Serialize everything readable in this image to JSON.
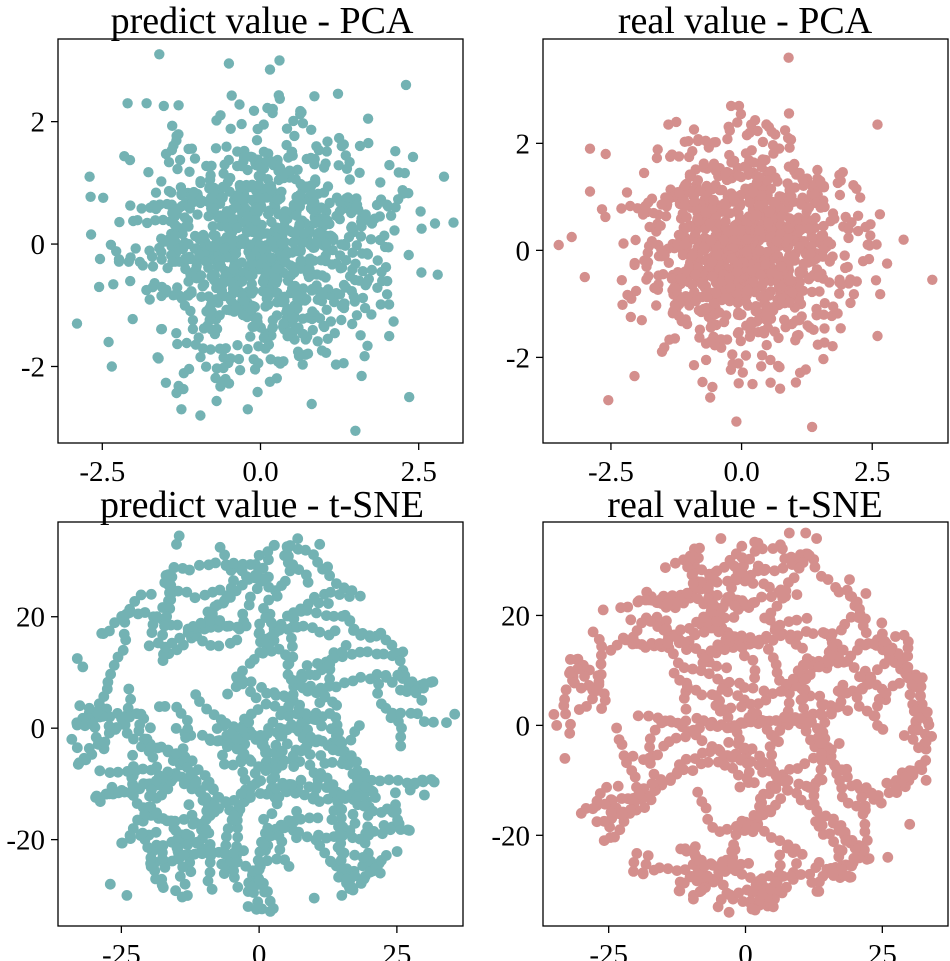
{
  "colors": {
    "predict": "#73b2b3",
    "real": "#d48f8d",
    "frame": "#000000"
  },
  "chart_data": [
    {
      "id": "pca-predict",
      "type": "scatter",
      "title": "predict value - PCA",
      "xlabel": "",
      "ylabel": "",
      "xlim": [
        -3.2,
        3.2
      ],
      "ylim": [
        -3.25,
        3.35
      ],
      "xticks": [
        -2.5,
        0,
        2.5
      ],
      "xtick_labels": [
        "-2.5",
        "0.0",
        "2.5"
      ],
      "yticks": [
        -2,
        0,
        2
      ],
      "ytick_labels": [
        "-2",
        "0",
        "2"
      ],
      "color_key": "predict",
      "n_points": 1000,
      "distribution": "gaussian blob centered at origin, sd ~1",
      "seed": 11,
      "points": [
        [
          -1.6,
          3.1
        ],
        [
          0.3,
          3.0
        ],
        [
          -0.5,
          2.95
        ],
        [
          0.15,
          2.85
        ],
        [
          -2.1,
          2.3
        ],
        [
          -1.8,
          2.3
        ],
        [
          2.3,
          2.6
        ],
        [
          -2.9,
          -1.3
        ],
        [
          -2.7,
          1.1
        ],
        [
          2.9,
          1.1
        ],
        [
          3.05,
          0.35
        ],
        [
          2.8,
          -0.5
        ],
        [
          2.35,
          -2.5
        ],
        [
          1.5,
          -3.05
        ],
        [
          -0.2,
          -2.7
        ],
        [
          -1.25,
          -2.7
        ],
        [
          -0.95,
          -2.8
        ],
        [
          -2.35,
          -2.0
        ],
        [
          -2.4,
          -1.6
        ],
        [
          -2.55,
          -0.7
        ]
      ]
    },
    {
      "id": "pca-real",
      "type": "scatter",
      "title": "real value - PCA",
      "xlabel": "",
      "ylabel": "",
      "xlim": [
        -3.8,
        3.95
      ],
      "ylim": [
        -3.6,
        3.95
      ],
      "xticks": [
        -2.5,
        0,
        2.5
      ],
      "xtick_labels": [
        "-2.5",
        "0.0",
        "2.5"
      ],
      "yticks": [
        -2,
        0,
        2
      ],
      "ytick_labels": [
        "-2",
        "0",
        "2"
      ],
      "color_key": "real",
      "n_points": 1000,
      "distribution": "gaussian blob centered at origin, sd ~1",
      "seed": 23,
      "points": [
        [
          0.9,
          3.6
        ],
        [
          -0.2,
          2.7
        ],
        [
          -0.05,
          2.7
        ],
        [
          -1.4,
          2.35
        ],
        [
          -1.25,
          2.4
        ],
        [
          -2.9,
          1.9
        ],
        [
          -2.6,
          1.8
        ],
        [
          -2.9,
          1.1
        ],
        [
          -3.5,
          0.1
        ],
        [
          -3.25,
          0.25
        ],
        [
          3.1,
          0.2
        ],
        [
          3.65,
          -0.55
        ],
        [
          2.6,
          2.35
        ],
        [
          -2.55,
          -2.8
        ],
        [
          -2.05,
          -2.35
        ],
        [
          -0.1,
          -3.2
        ],
        [
          1.35,
          -3.3
        ],
        [
          -0.6,
          -2.75
        ],
        [
          2.6,
          -1.6
        ],
        [
          -3.0,
          -0.5
        ]
      ]
    },
    {
      "id": "tsne-predict",
      "type": "scatter",
      "title": "predict value - t-SNE",
      "xlabel": "",
      "ylabel": "",
      "xlim": [
        -36.5,
        37
      ],
      "ylim": [
        -35.5,
        37
      ],
      "xticks": [
        -25,
        0,
        25
      ],
      "xtick_labels": [
        "-25",
        "0",
        "25"
      ],
      "yticks": [
        -20,
        0,
        20
      ],
      "ytick_labels": [
        "-20",
        "0",
        "20"
      ],
      "color_key": "predict",
      "n_points": 1000,
      "distribution": "uniform disk of radius ~34 with snaking clusters",
      "seed": 37,
      "points": [
        [
          -14.5,
          34.5
        ],
        [
          -15,
          33
        ],
        [
          7,
          34
        ],
        [
          11,
          33
        ],
        [
          0,
          31
        ],
        [
          -33,
          12.5
        ],
        [
          -34,
          -2
        ],
        [
          -33,
          -3.5
        ],
        [
          35.5,
          2.5
        ],
        [
          34,
          1
        ],
        [
          30,
          -12
        ],
        [
          -27,
          -28
        ],
        [
          -24,
          -30
        ],
        [
          -2,
          -32
        ],
        [
          -0.5,
          -32.5
        ],
        [
          10,
          -30.5
        ],
        [
          15,
          -30
        ],
        [
          -32,
          11
        ],
        [
          30,
          8
        ],
        [
          22,
          -26
        ]
      ]
    },
    {
      "id": "tsne-real",
      "type": "scatter",
      "title": "real value - t-SNE",
      "xlabel": "",
      "ylabel": "",
      "xlim": [
        -37,
        37
      ],
      "ylim": [
        -36.5,
        37
      ],
      "xticks": [
        -25,
        0,
        25
      ],
      "xtick_labels": [
        "-25",
        "0",
        "25"
      ],
      "yticks": [
        -20,
        0,
        20
      ],
      "ytick_labels": [
        "-20",
        "0",
        "20"
      ],
      "color_key": "real",
      "n_points": 1000,
      "distribution": "uniform disk of radius ~34 with snaking clusters",
      "seed": 53,
      "points": [
        [
          8,
          35
        ],
        [
          11,
          35
        ],
        [
          13,
          34
        ],
        [
          -4.5,
          34
        ],
        [
          -35,
          2
        ],
        [
          -34.5,
          0
        ],
        [
          -33,
          -6
        ],
        [
          34,
          -2
        ],
        [
          33,
          -3
        ],
        [
          30,
          -18
        ],
        [
          -30,
          -16
        ],
        [
          -5,
          -33
        ],
        [
          -3,
          -34
        ],
        [
          -8,
          -30
        ],
        [
          16,
          -27
        ],
        [
          26,
          -24
        ],
        [
          33,
          -10
        ],
        [
          -32,
          12
        ],
        [
          -26,
          21
        ],
        [
          22,
          24
        ]
      ]
    }
  ]
}
